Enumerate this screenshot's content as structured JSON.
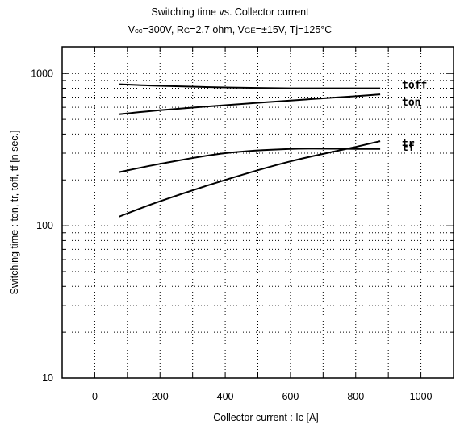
{
  "chart_data": {
    "type": "line",
    "title": "Switching time  vs. Collector current",
    "subtitle": {
      "parts": [
        {
          "text": "V",
          "sub": false
        },
        {
          "text": "cc",
          "sub": true
        },
        {
          "text": "=300V, R",
          "sub": false
        },
        {
          "text": "G",
          "sub": true
        },
        {
          "text": "=2.7 ohm, V",
          "sub": false
        },
        {
          "text": "GE",
          "sub": true
        },
        {
          "text": "=±15V, Tj=125°C",
          "sub": false
        }
      ]
    },
    "xlabel": "Collector  current  :  Ic [A]",
    "ylabel": "Switching  time  :  ton,  tr,  toff,  tf  [n sec.]",
    "xlim": [
      -100,
      1100
    ],
    "ylim": [
      10,
      1500
    ],
    "yscale": "log",
    "grid": true,
    "x_ticks": [
      0,
      200,
      400,
      600,
      800,
      1000
    ],
    "x_tick_labels": [
      "0",
      "200",
      "400",
      "600",
      "800",
      "1000"
    ],
    "y_ticks": [
      10,
      100,
      1000
    ],
    "y_tick_labels": [
      "10",
      "100",
      "1000"
    ],
    "series": [
      {
        "name": "toff",
        "x": [
          75,
          200,
          400,
          600,
          800,
          875
        ],
        "y": [
          850,
          830,
          810,
          800,
          800,
          800
        ]
      },
      {
        "name": "ton",
        "x": [
          75,
          200,
          400,
          600,
          800,
          875
        ],
        "y": [
          540,
          575,
          620,
          665,
          710,
          730
        ]
      },
      {
        "name": "tr",
        "x": [
          75,
          200,
          400,
          600,
          800,
          875
        ],
        "y": [
          225,
          255,
          300,
          320,
          320,
          320
        ]
      },
      {
        "name": "tf",
        "x": [
          75,
          200,
          400,
          600,
          800,
          875
        ],
        "y": [
          115,
          145,
          200,
          265,
          330,
          360
        ]
      }
    ]
  }
}
